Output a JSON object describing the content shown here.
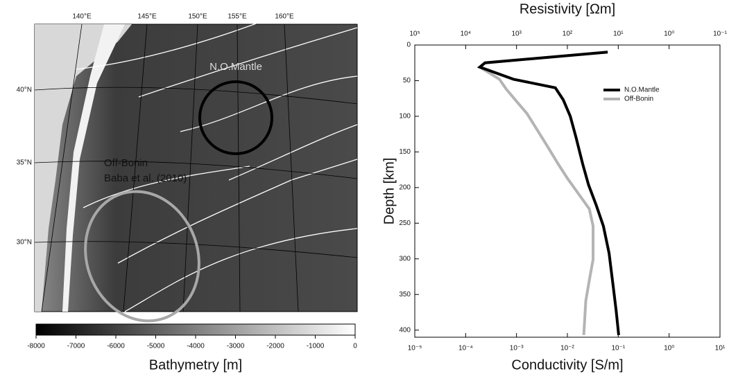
{
  "map": {
    "lon_labels": [
      "140°E",
      "145°E",
      "150°E",
      "155°E",
      "160°E"
    ],
    "lat_labels": [
      "40°N",
      "35°N",
      "30°N"
    ],
    "site_labels": [
      "N.O.Mantle",
      "Off-Bonin",
      "Baba et al. (2010)"
    ],
    "colorbar": {
      "lim": [
        -8000,
        0
      ],
      "ticks": [
        -8000,
        -7000,
        -6000,
        -5000,
        -4000,
        -3000,
        -2000,
        -1000,
        0
      ],
      "title": "Bathymetry [m]"
    }
  },
  "chart_data": {
    "type": "line",
    "x2_title": "Resistivity [Ωm]",
    "xlabel": "Conductivity [S/m]",
    "ylabel": "Depth [km]",
    "xlog": true,
    "xlim": [
      1e-05,
      10
    ],
    "xticks": [
      {
        "value": 1e-05,
        "label": "10⁻⁵"
      },
      {
        "value": 0.0001,
        "label": "10⁻⁴"
      },
      {
        "value": 0.001,
        "label": "10⁻³"
      },
      {
        "value": 0.01,
        "label": "10⁻²"
      },
      {
        "value": 0.1,
        "label": "10⁻¹"
      },
      {
        "value": 1,
        "label": "10⁰"
      },
      {
        "value": 10,
        "label": "10¹"
      }
    ],
    "x2lim": [
      100000,
      0.1
    ],
    "x2ticks": [
      {
        "value": 100000,
        "label": "10⁵"
      },
      {
        "value": 10000,
        "label": "10⁴"
      },
      {
        "value": 1000,
        "label": "10³"
      },
      {
        "value": 100,
        "label": "10²"
      },
      {
        "value": 10,
        "label": "10¹"
      },
      {
        "value": 1,
        "label": "10⁰"
      },
      {
        "value": 0.1,
        "label": "10⁻¹"
      }
    ],
    "ylim": [
      0,
      410
    ],
    "yticks": [
      0,
      50,
      100,
      150,
      200,
      250,
      300,
      350,
      400
    ],
    "legend": "upper right",
    "series": [
      {
        "name": "N.O.Mantle",
        "color": "#000000",
        "x": [
          0.062,
          0.00024,
          0.00019,
          0.00087,
          0.0058,
          0.0083,
          0.0114,
          0.0147,
          0.02,
          0.026,
          0.037,
          0.051,
          0.066,
          0.08,
          0.091,
          0.102
        ],
        "y": [
          10,
          25,
          31,
          48,
          60,
          77,
          100,
          129,
          167,
          196,
          225,
          254,
          292,
          340,
          373,
          407
        ]
      },
      {
        "name": "Off-Bonin",
        "color": "#b4b4b4",
        "x": [
          0.062,
          0.00024,
          0.00019,
          0.00046,
          0.00063,
          0.001,
          0.0016,
          0.0026,
          0.0042,
          0.0066,
          0.01,
          0.017,
          0.027,
          0.032,
          0.032,
          0.027,
          0.023,
          0.021
        ],
        "y": [
          10,
          25,
          31,
          48,
          62,
          79,
          96,
          120,
          144,
          167,
          187,
          210,
          230,
          254,
          301,
          330,
          359,
          407
        ]
      }
    ]
  }
}
